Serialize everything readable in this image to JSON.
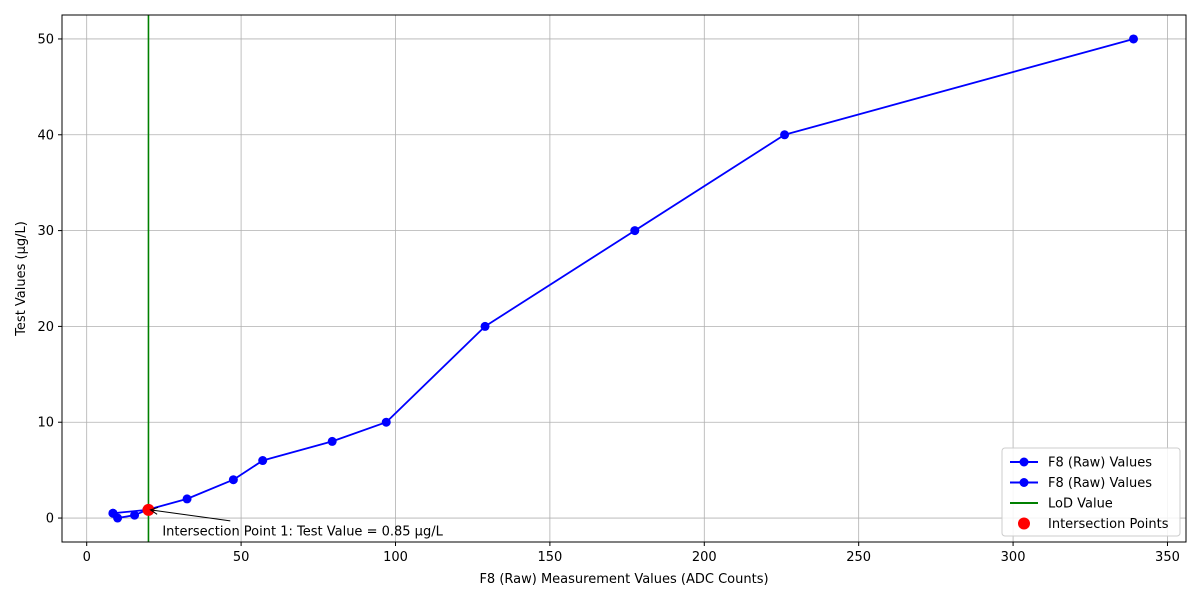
{
  "chart_data": {
    "type": "line",
    "title": "",
    "xlabel": "F8 (Raw) Measurement Values (ADC Counts)",
    "ylabel": "Test Values (µg/L)",
    "xlim": [
      -8,
      356
    ],
    "ylim": [
      -2.5,
      52.5
    ],
    "xticks": [
      0,
      50,
      100,
      150,
      200,
      250,
      300,
      350
    ],
    "yticks": [
      0,
      10,
      20,
      30,
      40,
      50
    ],
    "grid": true,
    "legend_position": "lower-right",
    "series": [
      {
        "name": "F8 (Raw) Values",
        "color": "#0000ff",
        "marker": "circle",
        "x": [
          339,
          226,
          177.5,
          129,
          97,
          79.5,
          57,
          47.5,
          32.5,
          19.5,
          15.5,
          10,
          8.5
        ],
        "y": [
          50,
          40,
          30,
          20,
          10,
          8,
          6,
          4,
          2,
          0.85,
          0.3,
          0,
          0.5
        ]
      },
      {
        "name": "F8 (Raw) Values",
        "color": "#0000ff",
        "marker": "circle",
        "x": [
          8.5,
          19.5
        ],
        "y": [
          0.5,
          0.85
        ]
      }
    ],
    "vline": {
      "name": "LoD Value",
      "x": 20,
      "color": "#008000"
    },
    "intersection_points": {
      "name": "Intersection Points",
      "color": "#ff0000",
      "x": [
        20
      ],
      "y": [
        0.85
      ]
    },
    "annotation": {
      "text": "Intersection Point 1: Test Value = 0.85 µg/L",
      "point": [
        20,
        0.85
      ],
      "text_at": [
        24.5,
        -1.3
      ]
    }
  }
}
